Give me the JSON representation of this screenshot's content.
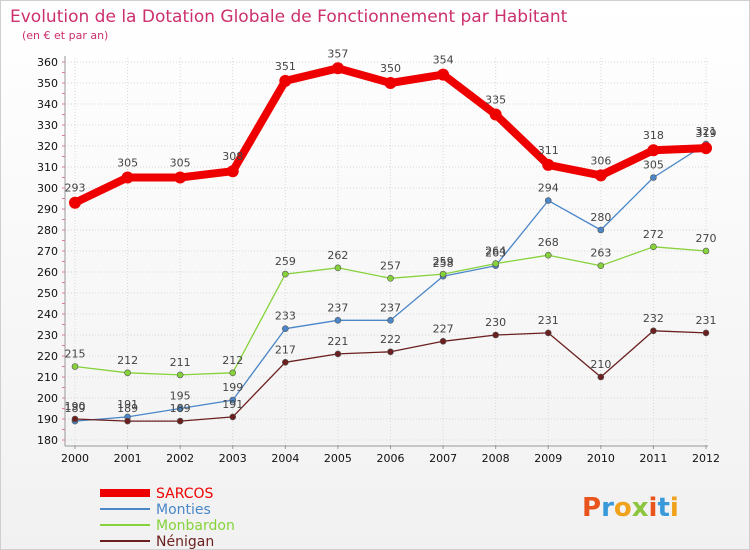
{
  "chart_data": {
    "type": "line",
    "title": "Evolution de la Dotation Globale de Fonctionnement par Habitant",
    "subtitle": "(en € et par an)",
    "xlabel": "",
    "ylabel": "",
    "x": [
      "2000",
      "2001",
      "2002",
      "2003",
      "2004",
      "2005",
      "2006",
      "2007",
      "2008",
      "2009",
      "2010",
      "2011",
      "2012"
    ],
    "ylim": [
      180,
      360
    ],
    "yticks": [
      180,
      190,
      200,
      210,
      220,
      230,
      240,
      250,
      260,
      270,
      280,
      290,
      300,
      310,
      320,
      330,
      340,
      350,
      360
    ],
    "grid": true,
    "legend_position": "bottom-left",
    "series": [
      {
        "name": "SARCOS",
        "color": "#ee0000",
        "values": [
          293,
          305,
          305,
          308,
          351,
          357,
          350,
          354,
          335,
          311,
          306,
          318,
          319
        ]
      },
      {
        "name": "Monties",
        "color": "#4a86c8",
        "values": [
          189,
          191,
          195,
          199,
          233,
          237,
          237,
          258,
          263,
          294,
          280,
          305,
          321
        ]
      },
      {
        "name": "Monbardon",
        "color": "#86d23a",
        "values": [
          215,
          212,
          211,
          212,
          259,
          262,
          257,
          259,
          264,
          268,
          263,
          272,
          270
        ]
      },
      {
        "name": "Nénigan",
        "color": "#6b1f1f",
        "values": [
          190,
          189,
          189,
          191,
          217,
          221,
          222,
          227,
          230,
          231,
          210,
          232,
          231
        ]
      }
    ]
  },
  "branding": {
    "logo_text": "Proxiti",
    "logo_colors": [
      "#e8541c",
      "#3a9ad9",
      "#f0a21c",
      "#8cc63f",
      "#e8541c",
      "#3a9ad9",
      "#f0a21c"
    ]
  }
}
